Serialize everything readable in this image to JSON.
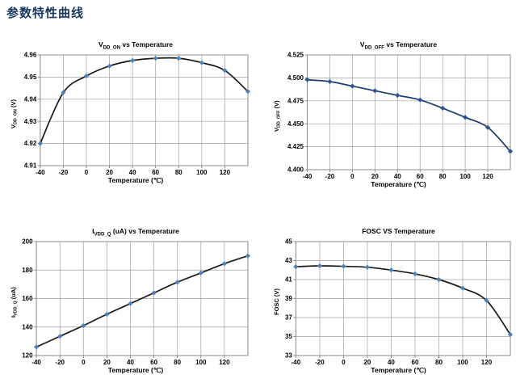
{
  "page": {
    "title": "参数特性曲线",
    "title_color": "#17375e"
  },
  "chart_data": [
    {
      "type": "line",
      "title_main": "V",
      "title_sub": "DD_ON",
      "title_rest": " vs Temperature",
      "ylabel_main": "V",
      "ylabel_sub": "DD_ON",
      "ylabel_rest": " (V)",
      "xlabel": "Temperature (℃)",
      "x": [
        -40,
        -20,
        0,
        20,
        40,
        60,
        80,
        100,
        120,
        140
      ],
      "values": [
        4.92,
        4.943,
        4.9505,
        4.955,
        4.9575,
        4.9585,
        4.9585,
        4.9565,
        4.953,
        4.9435
      ],
      "xlim": [
        -40,
        140
      ],
      "ylim": [
        4.91,
        4.96
      ],
      "x_tick_values": [
        -40,
        -20,
        0,
        20,
        40,
        60,
        80,
        100,
        120
      ],
      "x_tick_labels": [
        "-40",
        "-20",
        "0",
        "20",
        "40",
        "60",
        "80",
        "100",
        "120"
      ],
      "y_tick_values": [
        4.91,
        4.92,
        4.93,
        4.94,
        4.95,
        4.96
      ],
      "y_tick_labels": [
        "4.91",
        "4.92",
        "4.93",
        "4.94",
        "4.95",
        "4.96"
      ],
      "grid": true,
      "legend": "none",
      "line_color": "#1a1a1a",
      "marker_color": "#4f81bd",
      "grid_color": "#a0a0a0"
    },
    {
      "type": "line",
      "title_main": "V",
      "title_sub": "DD_OFF",
      "title_rest": " vs Temperature",
      "ylabel_main": "V",
      "ylabel_sub": "DD_OFF",
      "ylabel_rest": " (V)",
      "xlabel": "Temperature (℃)",
      "x": [
        -40,
        -20,
        0,
        20,
        40,
        60,
        80,
        100,
        120,
        140
      ],
      "values": [
        4.498,
        4.496,
        4.491,
        4.486,
        4.481,
        4.476,
        4.467,
        4.457,
        4.446,
        4.42
      ],
      "xlim": [
        -40,
        140
      ],
      "ylim": [
        4.4,
        4.525
      ],
      "x_tick_values": [
        -40,
        -20,
        0,
        20,
        40,
        60,
        80,
        100,
        120
      ],
      "x_tick_labels": [
        "-40",
        "-20",
        "0",
        "20",
        "40",
        "60",
        "80",
        "100",
        "120"
      ],
      "y_tick_values": [
        4.4,
        4.425,
        4.45,
        4.475,
        4.5,
        4.525
      ],
      "y_tick_labels": [
        "4.400",
        "4.425",
        "4.450",
        "4.475",
        "4.500",
        "4.525"
      ],
      "grid": true,
      "legend": "none",
      "line_color": "#1f3a6e",
      "marker_color": "#2f5496",
      "grid_color": "#a0a0a0"
    },
    {
      "type": "line",
      "title_main": "I",
      "title_sub": "VDD_Q",
      "title_rest": " (uA) vs Temperature",
      "ylabel_main": "I",
      "ylabel_sub": "VDD_Q",
      "ylabel_rest": " (uA)",
      "xlabel": "Temperature (℃)",
      "x": [
        -40,
        -20,
        0,
        20,
        40,
        60,
        80,
        100,
        120,
        140
      ],
      "values": [
        126,
        133.5,
        141,
        149,
        156.5,
        164,
        171.5,
        178,
        184.5,
        190
      ],
      "xlim": [
        -40,
        140
      ],
      "ylim": [
        120,
        200
      ],
      "x_tick_values": [
        -40,
        -20,
        0,
        20,
        40,
        60,
        80,
        100,
        120
      ],
      "x_tick_labels": [
        "-40",
        "-20",
        "0",
        "20",
        "40",
        "60",
        "80",
        "100",
        "120"
      ],
      "y_tick_values": [
        120,
        140,
        160,
        180,
        200
      ],
      "y_tick_labels": [
        "120",
        "140",
        "160",
        "180",
        "200"
      ],
      "grid": true,
      "legend": "none",
      "line_color": "#1a1a1a",
      "marker_color": "#4f81bd",
      "grid_color": "#a0a0a0"
    },
    {
      "type": "line",
      "title_main": "FOSC VS Temperature",
      "title_sub": "",
      "title_rest": "",
      "ylabel_main": "FOSC (V)",
      "ylabel_sub": "",
      "ylabel_rest": "",
      "xlabel": "Temperature (℃)",
      "x": [
        -40,
        -20,
        0,
        20,
        40,
        60,
        80,
        100,
        120,
        140
      ],
      "values": [
        42.35,
        42.45,
        42.4,
        42.3,
        42.0,
        41.6,
        41.0,
        40.1,
        38.8,
        35.2
      ],
      "xlim": [
        -40,
        140
      ],
      "ylim": [
        33,
        45
      ],
      "x_tick_values": [
        -40,
        -20,
        0,
        20,
        40,
        60,
        80,
        100,
        120
      ],
      "x_tick_labels": [
        "-40",
        "-20",
        "0",
        "20",
        "40",
        "60",
        "80",
        "100",
        "120"
      ],
      "y_tick_values": [
        33,
        35,
        37,
        39,
        41,
        43,
        45
      ],
      "y_tick_labels": [
        "33",
        "35",
        "37",
        "39",
        "41",
        "43",
        "45"
      ],
      "grid": true,
      "legend": "none",
      "line_color": "#1a1a1a",
      "marker_color": "#4f81bd",
      "grid_color": "#a0a0a0"
    }
  ]
}
